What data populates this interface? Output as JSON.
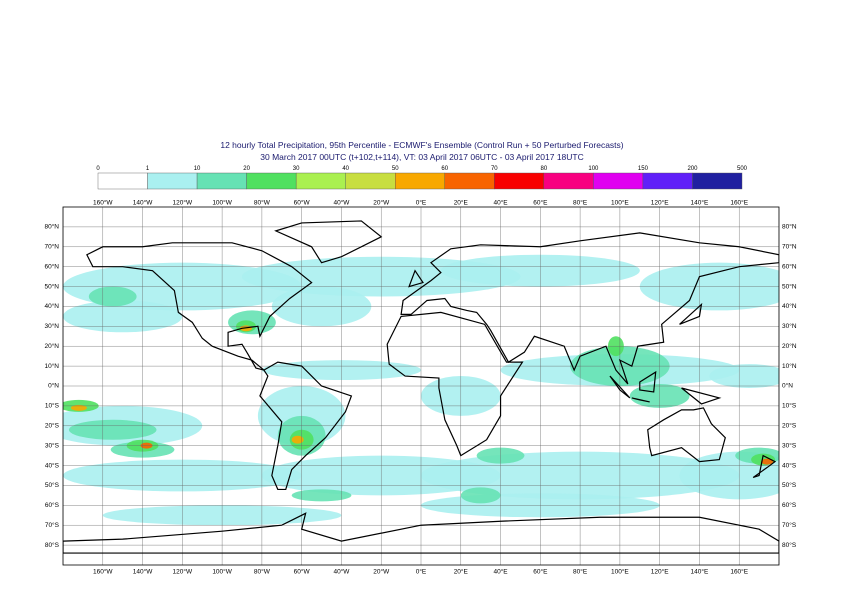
{
  "header": {
    "title": "12 hourly Total Precipitation, 95th Percentile - ECMWF's Ensemble (Control Run + 50 Perturbed Forecasts)",
    "subtitle": "30 March 2017 00UTC (t+102,t+114), VT: 03 April 2017 06UTC - 03 April 2017 18UTC"
  },
  "colorbar": {
    "labels": [
      0,
      1,
      10,
      20,
      30,
      40,
      50,
      60,
      70,
      80,
      100,
      150,
      200,
      500
    ]
  },
  "map": {
    "lon_labels": [
      "160°W",
      "140°W",
      "120°W",
      "100°W",
      "80°W",
      "60°W",
      "40°W",
      "20°W",
      "0°E",
      "20°E",
      "40°E",
      "60°E",
      "80°E",
      "100°E",
      "120°E",
      "140°E",
      "160°E"
    ],
    "lat_labels": [
      "80°N",
      "70°N",
      "60°N",
      "50°N",
      "40°N",
      "30°N",
      "20°N",
      "10°N",
      "0°N",
      "10°S",
      "20°S",
      "30°S",
      "40°S",
      "50°S",
      "60°S",
      "70°S",
      "80°S"
    ]
  }
}
